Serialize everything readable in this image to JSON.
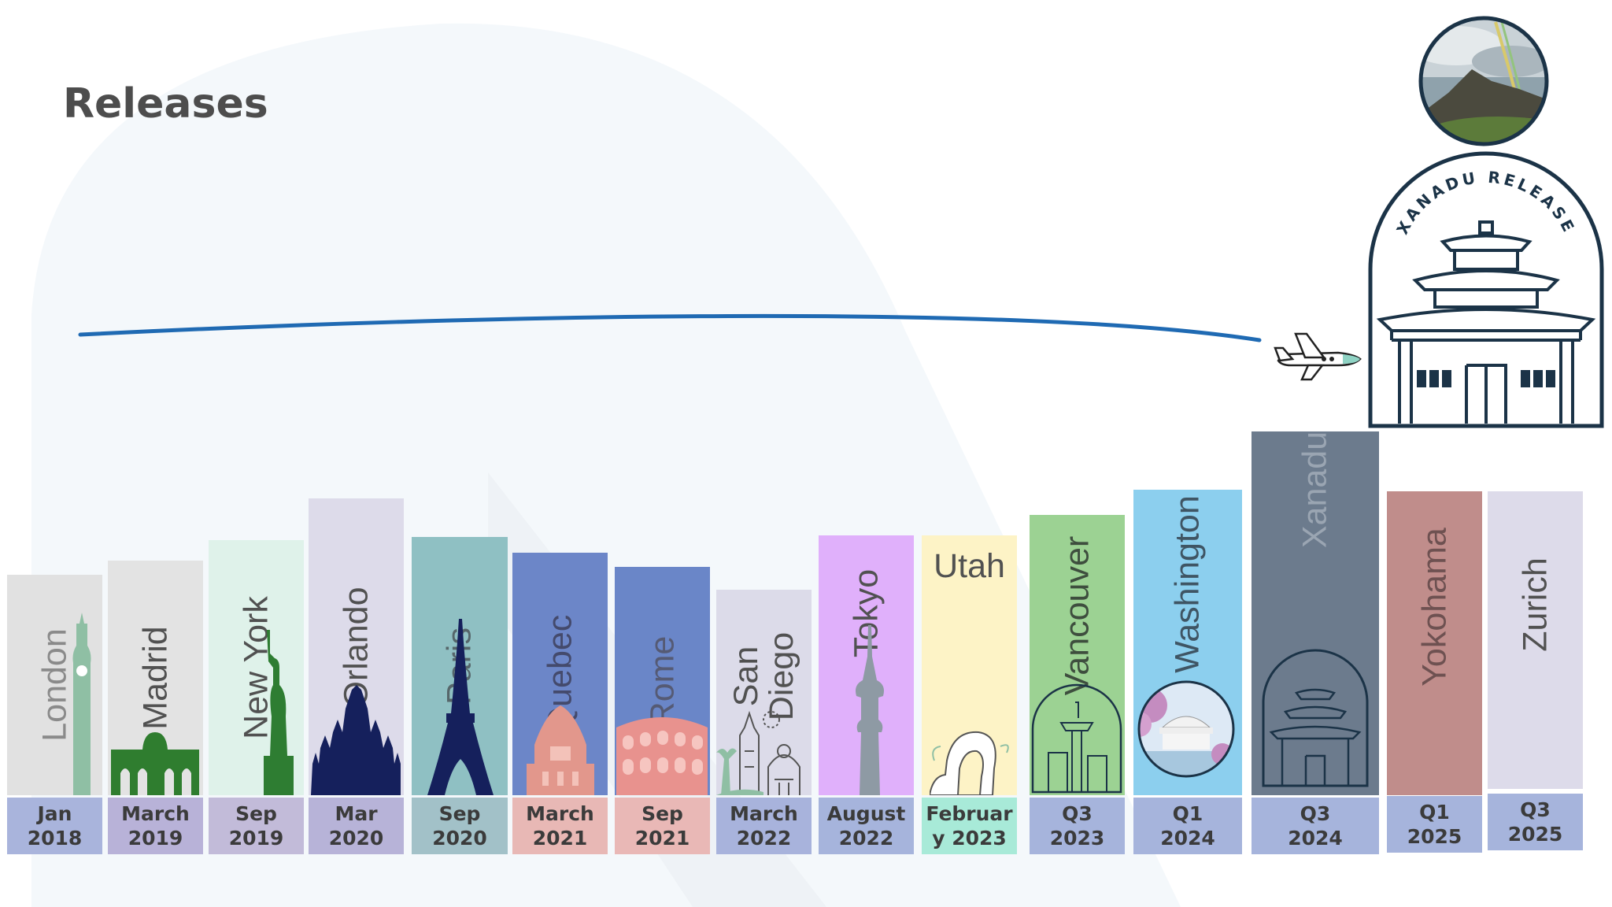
{
  "title": "Releases",
  "xanadu_badge": {
    "text": "XANADU RELEASE"
  },
  "colors": {
    "route": "#1f6ab3",
    "badge_ink": "#1b3347",
    "title": "#4d4d4d"
  },
  "releases": [
    {
      "city": "London",
      "date_line1": "Jan",
      "date_line2": "2018",
      "bar_color": "#e1e1e1",
      "text_color": "#8a8a8a",
      "date_bg": "#a9b4dc",
      "landmark": "big-ben-icon"
    },
    {
      "city": "Madrid",
      "date_line1": "March",
      "date_line2": "2019",
      "bar_color": "#e3e3e3",
      "text_color": "#515151",
      "date_bg": "#b8b2d8",
      "landmark": "madrid-gate-icon"
    },
    {
      "city": "New York",
      "date_line1": "Sep",
      "date_line2": "2019",
      "bar_color": "#dff2ea",
      "text_color": "#515151",
      "date_bg": "#c2bbd9",
      "landmark": "statue-of-liberty-icon"
    },
    {
      "city": "Orlando",
      "date_line1": "Mar",
      "date_line2": "2020",
      "bar_color": "#dddbea",
      "text_color": "#515151",
      "date_bg": "#b7b3d8",
      "landmark": "castle-icon"
    },
    {
      "city": "Paris",
      "date_line1": "Sep",
      "date_line2": "2020",
      "bar_color": "#8fc0c3",
      "text_color": "#56666a",
      "date_bg": "#a2c1c8",
      "landmark": "eiffel-tower-icon"
    },
    {
      "city": "Quebec",
      "date_line1": "March",
      "date_line2": "2021",
      "bar_color": "#6c86c8",
      "text_color": "#444a6c",
      "date_bg": "#e8b8b5",
      "landmark": "quebec-building-icon"
    },
    {
      "city": "Rome",
      "date_line1": "Sep",
      "date_line2": "2021",
      "bar_color": "#6a86c8",
      "text_color": "#555a74",
      "date_bg": "#e9b8b6",
      "landmark": "colosseum-icon"
    },
    {
      "city": "San Diego",
      "date_line1": "March",
      "date_line2": "2022",
      "bar_color": "#dcdbe9",
      "text_color": "#515151",
      "date_bg": "#a8b3dc",
      "landmark": "san-diego-landmark-icon"
    },
    {
      "city": "Tokyo",
      "date_line1": "August",
      "date_line2": "2022",
      "bar_color": "#e0b0fb",
      "text_color": "#515151",
      "date_bg": "#a6b4dc",
      "landmark": "tokyo-tower-icon"
    },
    {
      "city": "Utah",
      "date_line1": "Februar",
      "date_line2": "y 2023",
      "bar_color": "#fdf3c6",
      "text_color": "#515151",
      "date_bg": "#a8ead8",
      "landmark": "delicate-arch-icon"
    },
    {
      "city": "Vancouver",
      "date_line1": "Q3",
      "date_line2": "2023",
      "bar_color": "#9cd293",
      "text_color": "#3e4e3e",
      "date_bg": "#a6b4dc",
      "landmark": "vancouver-release-badge-icon"
    },
    {
      "city": "Washington",
      "date_line1": "Q1",
      "date_line2": "2024",
      "bar_color": "#8ccfee",
      "text_color": "#3f5564",
      "date_bg": "#a6b4dc",
      "landmark": "jefferson-memorial-icon"
    },
    {
      "city": "Xanadu",
      "date_line1": "Q3",
      "date_line2": "2024",
      "bar_color": "#6c7b8d",
      "text_color": "#9aa5b2",
      "date_bg": "#a6b4dc",
      "landmark": "xanadu-release-badge-icon"
    },
    {
      "city": "Yokohama",
      "date_line1": "Q1",
      "date_line2": "2025",
      "bar_color": "#c08d8b",
      "text_color": "#6e5151",
      "date_bg": "#a6b4dc",
      "landmark": ""
    },
    {
      "city": "Zurich",
      "date_line1": "Q3",
      "date_line2": "2025",
      "bar_color": "#dddbea",
      "text_color": "#515151",
      "date_bg": "#a6b4dc",
      "landmark": ""
    }
  ]
}
